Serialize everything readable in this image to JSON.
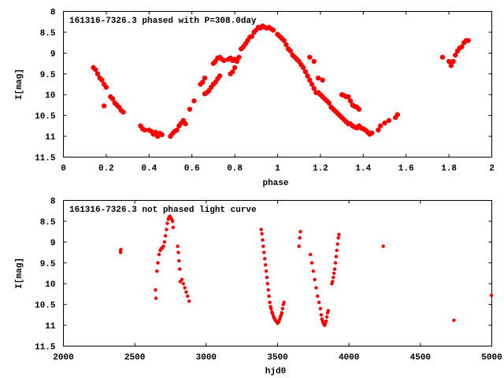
{
  "chart_data": [
    {
      "type": "scatter",
      "title": "161316-7326.3 phased with P=308.0day",
      "xlabel": "phase",
      "ylabel": "I[mag]",
      "xlim": [
        0,
        2
      ],
      "ylim": [
        11.5,
        8
      ],
      "y_inverted": true,
      "xticks": [
        "0",
        "0.2",
        "0.4",
        "0.6",
        "0.8",
        "1",
        "1.2",
        "1.4",
        "1.6",
        "1.8",
        "2"
      ],
      "xtick_values": [
        0,
        0.2,
        0.4,
        0.6,
        0.8,
        1.0,
        1.2,
        1.4,
        1.6,
        1.8,
        2.0
      ],
      "yticks": [
        "8",
        "8.5",
        "9",
        "9.5",
        "10",
        "10.5",
        "11",
        "11.5"
      ],
      "ytick_values": [
        8,
        8.5,
        9,
        9.5,
        10,
        10.5,
        11,
        11.5
      ],
      "marker_color": "#ff0000",
      "grid": false,
      "points": [
        [
          0.14,
          9.35
        ],
        [
          0.15,
          9.4
        ],
        [
          0.16,
          9.5
        ],
        [
          0.17,
          9.6
        ],
        [
          0.18,
          9.65
        ],
        [
          0.19,
          9.75
        ],
        [
          0.2,
          9.82
        ],
        [
          0.19,
          10.27
        ],
        [
          0.22,
          10.05
        ],
        [
          0.23,
          10.1
        ],
        [
          0.24,
          10.2
        ],
        [
          0.25,
          10.25
        ],
        [
          0.26,
          10.3
        ],
        [
          0.27,
          10.38
        ],
        [
          0.28,
          10.42
        ],
        [
          0.36,
          10.75
        ],
        [
          0.37,
          10.82
        ],
        [
          0.38,
          10.85
        ],
        [
          0.4,
          10.85
        ],
        [
          0.41,
          10.88
        ],
        [
          0.42,
          10.95
        ],
        [
          0.43,
          10.9
        ],
        [
          0.44,
          11.0
        ],
        [
          0.45,
          10.93
        ],
        [
          0.46,
          10.96
        ],
        [
          0.5,
          11.0
        ],
        [
          0.51,
          10.93
        ],
        [
          0.52,
          10.88
        ],
        [
          0.53,
          10.85
        ],
        [
          0.54,
          10.75
        ],
        [
          0.55,
          10.68
        ],
        [
          0.56,
          10.62
        ],
        [
          0.57,
          10.7
        ],
        [
          0.59,
          10.35
        ],
        [
          0.61,
          10.15
        ],
        [
          0.64,
          9.75
        ],
        [
          0.65,
          9.7
        ],
        [
          0.66,
          9.6
        ],
        [
          0.66,
          9.98
        ],
        [
          0.67,
          9.95
        ],
        [
          0.68,
          9.9
        ],
        [
          0.69,
          9.82
        ],
        [
          0.7,
          9.75
        ],
        [
          0.71,
          9.7
        ],
        [
          0.72,
          9.62
        ],
        [
          0.73,
          9.55
        ],
        [
          0.7,
          9.25
        ],
        [
          0.71,
          9.2
        ],
        [
          0.72,
          9.12
        ],
        [
          0.73,
          9.1
        ],
        [
          0.74,
          9.15
        ],
        [
          0.75,
          9.18
        ],
        [
          0.77,
          9.15
        ],
        [
          0.78,
          9.12
        ],
        [
          0.79,
          9.18
        ],
        [
          0.8,
          9.15
        ],
        [
          0.81,
          9.2
        ],
        [
          0.82,
          9.1
        ],
        [
          0.78,
          9.5
        ],
        [
          0.79,
          9.45
        ],
        [
          0.8,
          9.35
        ],
        [
          0.83,
          8.9
        ],
        [
          0.84,
          8.85
        ],
        [
          0.85,
          8.78
        ],
        [
          0.86,
          8.7
        ],
        [
          0.87,
          8.62
        ],
        [
          0.88,
          8.6
        ],
        [
          0.89,
          8.5
        ],
        [
          0.9,
          8.45
        ],
        [
          0.91,
          8.38
        ],
        [
          0.92,
          8.4
        ],
        [
          0.93,
          8.35
        ],
        [
          0.94,
          8.38
        ],
        [
          0.95,
          8.4
        ],
        [
          0.96,
          8.38
        ],
        [
          0.97,
          8.42
        ],
        [
          0.98,
          8.45
        ],
        [
          1.0,
          8.55
        ],
        [
          1.01,
          8.6
        ],
        [
          1.02,
          8.65
        ],
        [
          1.03,
          8.7
        ],
        [
          1.04,
          8.8
        ],
        [
          1.05,
          8.9
        ],
        [
          1.06,
          8.95
        ],
        [
          1.07,
          9.05
        ],
        [
          1.08,
          9.1
        ],
        [
          1.09,
          9.15
        ],
        [
          1.1,
          9.2
        ],
        [
          1.11,
          9.28
        ],
        [
          1.12,
          9.35
        ],
        [
          1.13,
          9.45
        ],
        [
          1.14,
          9.55
        ],
        [
          1.15,
          9.65
        ],
        [
          1.16,
          9.75
        ],
        [
          1.17,
          9.85
        ],
        [
          1.18,
          9.95
        ],
        [
          1.19,
          9.95
        ],
        [
          1.2,
          10.0
        ],
        [
          1.21,
          10.05
        ],
        [
          1.22,
          10.1
        ],
        [
          1.23,
          10.15
        ],
        [
          1.24,
          10.2
        ],
        [
          1.25,
          10.3
        ],
        [
          1.26,
          10.35
        ],
        [
          1.27,
          10.4
        ],
        [
          1.28,
          10.45
        ],
        [
          1.29,
          10.5
        ],
        [
          1.3,
          10.55
        ],
        [
          1.31,
          10.6
        ],
        [
          1.32,
          10.65
        ],
        [
          1.33,
          10.7
        ],
        [
          1.34,
          10.7
        ],
        [
          1.35,
          10.75
        ],
        [
          1.36,
          10.78
        ],
        [
          1.37,
          10.8
        ],
        [
          1.38,
          10.75
        ],
        [
          1.39,
          10.8
        ],
        [
          1.4,
          10.82
        ],
        [
          1.41,
          10.85
        ],
        [
          1.42,
          10.9
        ],
        [
          1.43,
          10.95
        ],
        [
          1.44,
          10.92
        ],
        [
          1.15,
          9.1
        ],
        [
          1.17,
          9.2
        ],
        [
          1.19,
          9.6
        ],
        [
          1.21,
          9.65
        ],
        [
          1.3,
          10.0
        ],
        [
          1.31,
          10.02
        ],
        [
          1.32,
          10.05
        ],
        [
          1.33,
          10.05
        ],
        [
          1.34,
          10.15
        ],
        [
          1.35,
          10.25
        ],
        [
          1.36,
          10.28
        ],
        [
          1.37,
          10.3
        ],
        [
          1.38,
          10.35
        ],
        [
          1.47,
          10.85
        ],
        [
          1.48,
          10.75
        ],
        [
          1.5,
          10.68
        ],
        [
          1.52,
          10.62
        ],
        [
          1.55,
          10.55
        ],
        [
          1.56,
          10.48
        ],
        [
          1.77,
          9.1
        ],
        [
          1.8,
          9.2
        ],
        [
          1.81,
          9.22
        ],
        [
          1.81,
          9.3
        ],
        [
          1.82,
          9.2
        ],
        [
          1.83,
          9.05
        ],
        [
          1.84,
          8.95
        ],
        [
          1.85,
          8.88
        ],
        [
          1.86,
          8.85
        ],
        [
          1.87,
          8.75
        ],
        [
          1.88,
          8.7
        ],
        [
          1.89,
          8.7
        ]
      ]
    },
    {
      "type": "scatter",
      "title": "161316-7326.3 not phased light curve",
      "xlabel": "hjd0",
      "ylabel": "I[mag]",
      "xlim": [
        2000,
        5000
      ],
      "ylim": [
        11.5,
        8
      ],
      "y_inverted": true,
      "xticks": [
        "2000",
        "2500",
        "3000",
        "3500",
        "4000",
        "4500",
        "5000"
      ],
      "xtick_values": [
        2000,
        2500,
        3000,
        3500,
        4000,
        4500,
        5000
      ],
      "yticks": [
        "8",
        "8.5",
        "9",
        "9.5",
        "10",
        "10.5",
        "11",
        "11.5"
      ],
      "ytick_values": [
        8,
        8.5,
        9,
        9.5,
        10,
        10.5,
        11,
        11.5
      ],
      "marker_color": "#ff0000",
      "grid": false,
      "points": [
        [
          2400,
          9.2
        ],
        [
          2401,
          9.25
        ],
        [
          2402,
          9.18
        ],
        [
          2645,
          10.15
        ],
        [
          2648,
          10.35
        ],
        [
          2655,
          9.7
        ],
        [
          2662,
          9.5
        ],
        [
          2670,
          9.3
        ],
        [
          2678,
          9.2
        ],
        [
          2685,
          9.15
        ],
        [
          2692,
          9.15
        ],
        [
          2700,
          9.1
        ],
        [
          2708,
          9.0
        ],
        [
          2715,
          8.85
        ],
        [
          2722,
          8.7
        ],
        [
          2728,
          8.55
        ],
        [
          2734,
          8.45
        ],
        [
          2740,
          8.4
        ],
        [
          2746,
          8.38
        ],
        [
          2752,
          8.42
        ],
        [
          2758,
          8.45
        ],
        [
          2764,
          8.5
        ],
        [
          2768,
          8.65
        ],
        [
          2800,
          9.1
        ],
        [
          2805,
          9.25
        ],
        [
          2810,
          9.45
        ],
        [
          2815,
          9.65
        ],
        [
          2818,
          9.95
        ],
        [
          2830,
          9.9
        ],
        [
          2840,
          10.0
        ],
        [
          2850,
          10.1
        ],
        [
          2860,
          10.2
        ],
        [
          2870,
          10.3
        ],
        [
          2880,
          10.42
        ],
        [
          3385,
          8.7
        ],
        [
          3390,
          8.8
        ],
        [
          3395,
          8.95
        ],
        [
          3400,
          9.1
        ],
        [
          3405,
          9.25
        ],
        [
          3410,
          9.4
        ],
        [
          3415,
          9.55
        ],
        [
          3420,
          9.7
        ],
        [
          3425,
          9.85
        ],
        [
          3430,
          10.0
        ],
        [
          3435,
          10.15
        ],
        [
          3440,
          10.3
        ],
        [
          3445,
          10.45
        ],
        [
          3450,
          10.55
        ],
        [
          3455,
          10.6
        ],
        [
          3460,
          10.68
        ],
        [
          3465,
          10.72
        ],
        [
          3470,
          10.78
        ],
        [
          3475,
          10.82
        ],
        [
          3480,
          10.85
        ],
        [
          3485,
          10.88
        ],
        [
          3490,
          10.9
        ],
        [
          3495,
          10.92
        ],
        [
          3500,
          10.95
        ],
        [
          3505,
          10.93
        ],
        [
          3510,
          10.9
        ],
        [
          3515,
          10.85
        ],
        [
          3520,
          10.8
        ],
        [
          3525,
          10.75
        ],
        [
          3530,
          10.7
        ],
        [
          3535,
          10.6
        ],
        [
          3540,
          10.5
        ],
        [
          3545,
          10.45
        ],
        [
          3650,
          9.1
        ],
        [
          3655,
          8.9
        ],
        [
          3660,
          8.75
        ],
        [
          3730,
          9.3
        ],
        [
          3740,
          9.5
        ],
        [
          3750,
          9.7
        ],
        [
          3760,
          9.9
        ],
        [
          3770,
          10.1
        ],
        [
          3780,
          10.3
        ],
        [
          3790,
          10.45
        ],
        [
          3800,
          10.6
        ],
        [
          3805,
          10.75
        ],
        [
          3810,
          10.85
        ],
        [
          3815,
          10.9
        ],
        [
          3820,
          10.95
        ],
        [
          3825,
          10.98
        ],
        [
          3830,
          11.0
        ],
        [
          3835,
          10.95
        ],
        [
          3840,
          10.9
        ],
        [
          3845,
          10.8
        ],
        [
          3850,
          10.7
        ],
        [
          3855,
          10.65
        ],
        [
          3880,
          10.0
        ],
        [
          3885,
          9.95
        ],
        [
          3890,
          9.85
        ],
        [
          3895,
          9.75
        ],
        [
          3900,
          9.65
        ],
        [
          3905,
          9.5
        ],
        [
          3910,
          9.35
        ],
        [
          3915,
          9.2
        ],
        [
          3920,
          9.05
        ],
        [
          3925,
          8.9
        ],
        [
          3930,
          8.82
        ],
        [
          4240,
          9.1
        ],
        [
          4735,
          10.88
        ],
        [
          4998,
          10.28
        ]
      ]
    }
  ]
}
